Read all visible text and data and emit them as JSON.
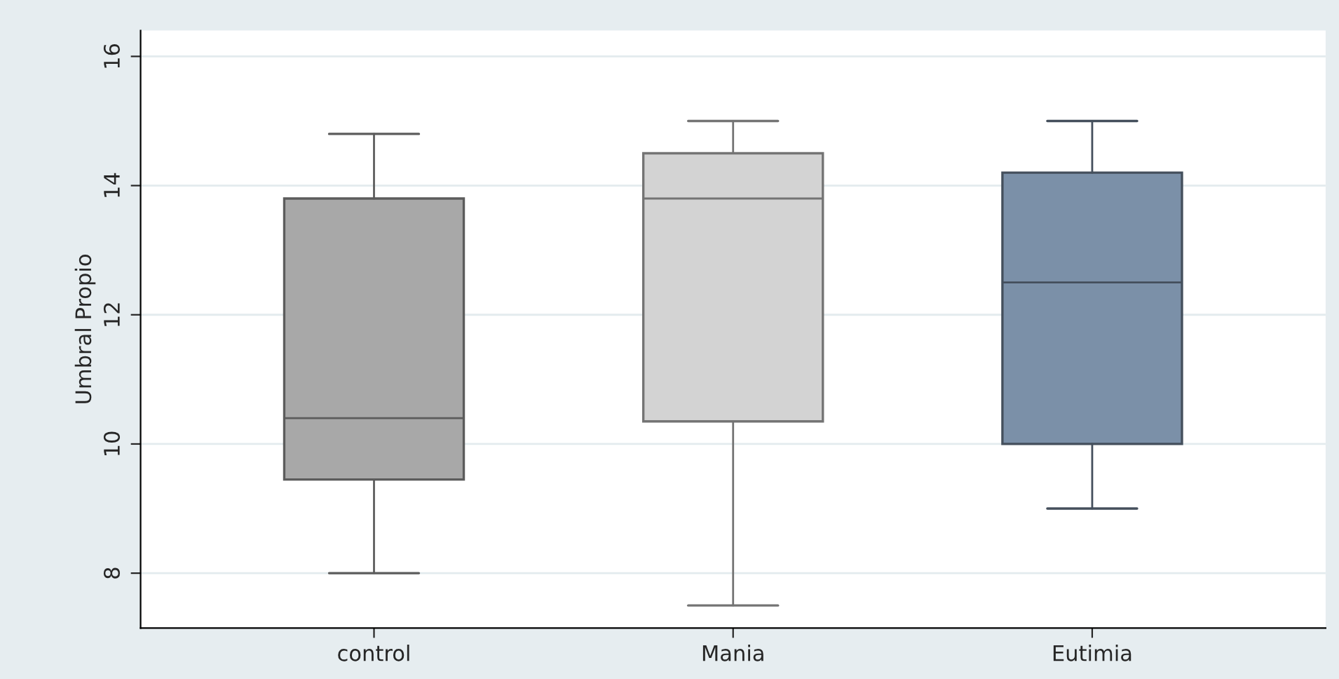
{
  "chart_data": {
    "type": "box",
    "ylabel": "Umbral Propio",
    "categories": [
      "control",
      "Mania",
      "Eutimia"
    ],
    "boxes": [
      {
        "low": 8.0,
        "q1": 9.45,
        "median": 10.4,
        "q3": 13.8,
        "high": 14.8
      },
      {
        "low": 7.5,
        "q1": 10.35,
        "median": 13.8,
        "q3": 14.5,
        "high": 15.0
      },
      {
        "low": 9.0,
        "q1": 10.0,
        "median": 12.5,
        "q3": 14.2,
        "high": 15.0
      }
    ],
    "colors": [
      "#a8a8a8",
      "#d3d3d3",
      "#7b90a8"
    ],
    "ylim": [
      7.15,
      16.4
    ],
    "yticks": [
      8,
      10,
      12,
      14,
      16
    ],
    "grid": "y"
  }
}
